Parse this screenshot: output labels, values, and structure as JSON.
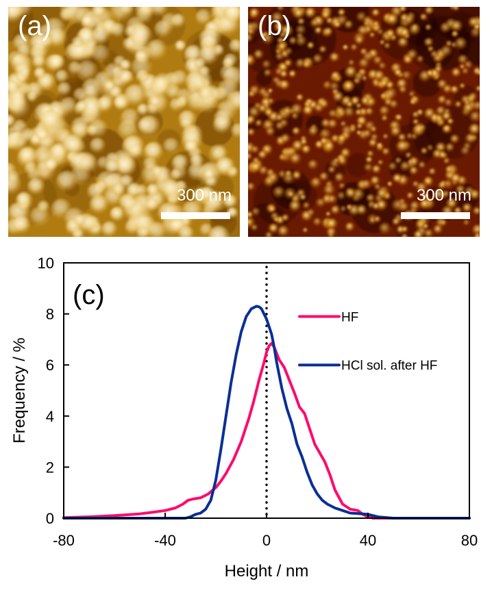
{
  "panels": {
    "a": {
      "label": "(a)",
      "scale_bar": "300 nm",
      "colormap": [
        "#6b3d00",
        "#b07c12",
        "#d9a83a",
        "#f6e0a2",
        "#fff8e6"
      ]
    },
    "b": {
      "label": "(b)",
      "scale_bar": "300 nm",
      "colormap": [
        "#1a0200",
        "#6a1a00",
        "#a04a00",
        "#d08a10",
        "#fff6d0"
      ]
    }
  },
  "chart_data": {
    "type": "line",
    "panel_label": "(c)",
    "title": "",
    "xlabel": "Height / nm",
    "ylabel": "Frequency / %",
    "xlim": [
      -80,
      80
    ],
    "ylim": [
      0,
      10
    ],
    "xticks": [
      -80,
      -40,
      0,
      40,
      80
    ],
    "xtick_labels": [
      "-80",
      "-40",
      "0",
      "40",
      "80"
    ],
    "yticks": [
      0,
      2,
      4,
      6,
      8,
      10
    ],
    "ytick_labels": [
      "0",
      "2",
      "4",
      "6",
      "8",
      "10"
    ],
    "grid": false,
    "legend_position": "top-right",
    "reference_line": {
      "x": 0,
      "style": "dotted",
      "color": "#000000"
    },
    "series": [
      {
        "name": "HF",
        "color": "#ff0a6a",
        "x": [
          -80,
          -70,
          -60,
          -50,
          -45,
          -40,
          -36,
          -33,
          -31,
          -29,
          -26,
          -23,
          -20,
          -18,
          -16,
          -13,
          -10,
          -7,
          -5,
          -3,
          -1,
          0,
          1,
          2,
          3,
          5,
          7,
          9,
          11,
          13,
          15,
          17,
          19,
          21,
          23,
          25,
          27,
          30,
          33,
          36,
          38,
          40,
          42,
          50,
          60,
          70,
          80
        ],
        "values": [
          0.02,
          0.05,
          0.1,
          0.17,
          0.23,
          0.3,
          0.4,
          0.55,
          0.7,
          0.75,
          0.8,
          0.95,
          1.2,
          1.45,
          1.75,
          2.3,
          3.0,
          3.9,
          4.6,
          5.4,
          6.1,
          6.5,
          6.75,
          6.85,
          6.7,
          6.2,
          5.9,
          5.4,
          4.9,
          4.35,
          4.1,
          3.5,
          2.9,
          2.55,
          2.2,
          1.7,
          1.1,
          0.55,
          0.35,
          0.3,
          0.15,
          0.05,
          0.0,
          0.0,
          0.0,
          0.0,
          0.0
        ]
      },
      {
        "name": "HCl sol. after HF",
        "color": "#0a2f96",
        "x": [
          -80,
          -40,
          -32,
          -30,
          -28,
          -26,
          -24,
          -22,
          -20,
          -18,
          -16,
          -14,
          -12,
          -10,
          -8,
          -6,
          -4,
          -3,
          -2,
          -1,
          0,
          1,
          2,
          3,
          4,
          6,
          8,
          10,
          12,
          14,
          16,
          18,
          20,
          22,
          24,
          27,
          30,
          33,
          36,
          40,
          44,
          50,
          60,
          70,
          80
        ],
        "values": [
          0.0,
          0.0,
          0.0,
          0.05,
          0.15,
          0.2,
          0.35,
          0.7,
          1.5,
          2.7,
          4.0,
          5.3,
          6.4,
          7.3,
          7.9,
          8.2,
          8.3,
          8.28,
          8.2,
          8.0,
          7.8,
          7.5,
          7.2,
          6.7,
          6.1,
          5.1,
          4.3,
          3.7,
          2.9,
          2.4,
          1.8,
          1.3,
          0.95,
          0.7,
          0.55,
          0.4,
          0.3,
          0.2,
          0.18,
          0.15,
          0.05,
          0.0,
          0.0,
          0.0,
          0.0
        ]
      }
    ]
  }
}
